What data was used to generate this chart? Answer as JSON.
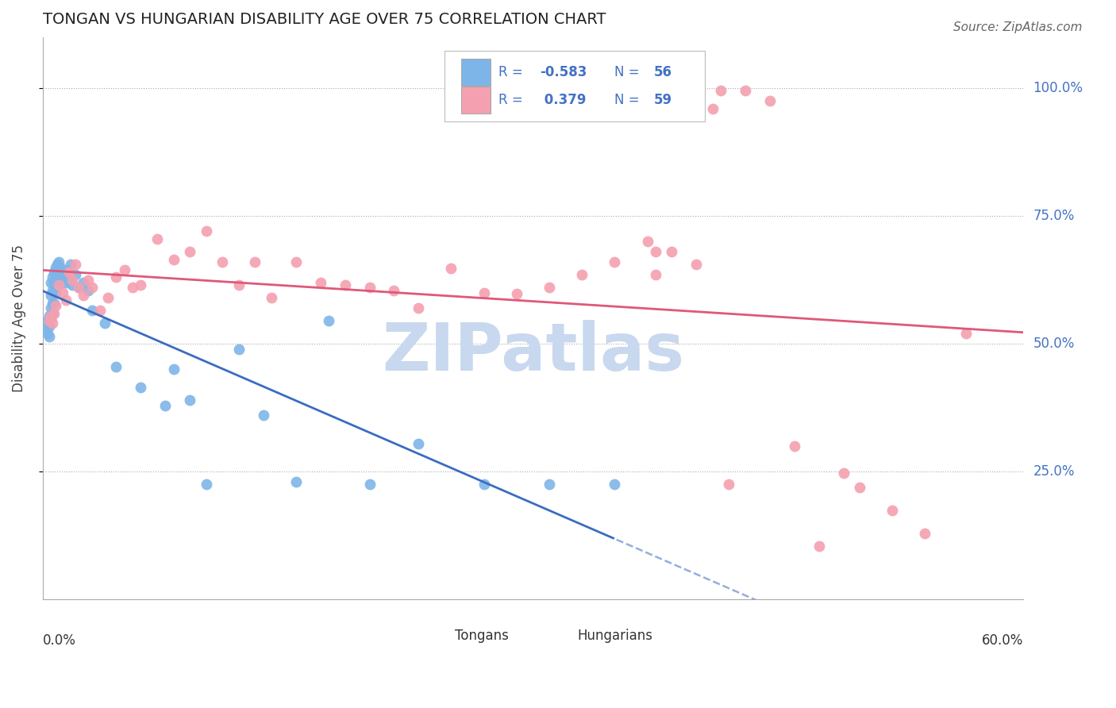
{
  "title": "TONGAN VS HUNGARIAN DISABILITY AGE OVER 75 CORRELATION CHART",
  "source": "Source: ZipAtlas.com",
  "ylabel": "Disability Age Over 75",
  "ytick_labels": [
    "25.0%",
    "50.0%",
    "75.0%",
    "100.0%"
  ],
  "ytick_values": [
    0.25,
    0.5,
    0.75,
    1.0
  ],
  "xlim": [
    0.0,
    0.6
  ],
  "ylim": [
    0.0,
    1.1
  ],
  "legend_r_tongan": "-0.583",
  "legend_n_tongan": "56",
  "legend_r_hungarian": "0.379",
  "legend_n_hungarian": "59",
  "tongan_color": "#7EB5E8",
  "hungarian_color": "#F4A0B0",
  "tongan_line_color": "#3B6CC0",
  "hungarian_line_color": "#E05878",
  "background_color": "#FFFFFF",
  "watermark_color": "#C8D8EE",
  "label_color": "#4472C4",
  "tongan_x": [
    0.002,
    0.003,
    0.003,
    0.004,
    0.004,
    0.004,
    0.005,
    0.005,
    0.005,
    0.005,
    0.006,
    0.006,
    0.006,
    0.006,
    0.007,
    0.007,
    0.007,
    0.007,
    0.008,
    0.008,
    0.008,
    0.009,
    0.009,
    0.01,
    0.01,
    0.01,
    0.011,
    0.011,
    0.012,
    0.013,
    0.014,
    0.015,
    0.016,
    0.017,
    0.018,
    0.02,
    0.022,
    0.025,
    0.028,
    0.03,
    0.038,
    0.045,
    0.06,
    0.075,
    0.08,
    0.09,
    0.1,
    0.12,
    0.135,
    0.155,
    0.175,
    0.2,
    0.23,
    0.27,
    0.31,
    0.35
  ],
  "tongan_y": [
    0.53,
    0.545,
    0.52,
    0.555,
    0.535,
    0.515,
    0.62,
    0.595,
    0.57,
    0.55,
    0.63,
    0.605,
    0.58,
    0.56,
    0.64,
    0.62,
    0.6,
    0.58,
    0.65,
    0.625,
    0.6,
    0.655,
    0.63,
    0.66,
    0.64,
    0.615,
    0.65,
    0.625,
    0.645,
    0.625,
    0.62,
    0.645,
    0.63,
    0.655,
    0.615,
    0.635,
    0.61,
    0.62,
    0.605,
    0.565,
    0.54,
    0.455,
    0.415,
    0.38,
    0.45,
    0.39,
    0.225,
    0.49,
    0.36,
    0.23,
    0.545,
    0.225,
    0.305,
    0.225,
    0.225,
    0.225
  ],
  "hungarian_x": [
    0.004,
    0.005,
    0.006,
    0.007,
    0.008,
    0.01,
    0.012,
    0.014,
    0.016,
    0.018,
    0.02,
    0.022,
    0.025,
    0.028,
    0.03,
    0.035,
    0.04,
    0.045,
    0.05,
    0.055,
    0.06,
    0.07,
    0.08,
    0.09,
    0.1,
    0.11,
    0.12,
    0.13,
    0.14,
    0.155,
    0.17,
    0.185,
    0.2,
    0.215,
    0.23,
    0.25,
    0.27,
    0.29,
    0.31,
    0.33,
    0.35,
    0.37,
    0.385,
    0.4,
    0.415,
    0.43,
    0.445,
    0.46,
    0.475,
    0.49,
    0.375,
    0.39,
    0.41,
    0.5,
    0.52,
    0.54,
    0.375,
    0.42,
    0.565
  ],
  "hungarian_y": [
    0.545,
    0.555,
    0.54,
    0.56,
    0.575,
    0.615,
    0.6,
    0.585,
    0.64,
    0.625,
    0.655,
    0.61,
    0.595,
    0.625,
    0.61,
    0.565,
    0.59,
    0.63,
    0.645,
    0.61,
    0.615,
    0.705,
    0.665,
    0.68,
    0.72,
    0.66,
    0.615,
    0.66,
    0.59,
    0.66,
    0.62,
    0.615,
    0.61,
    0.605,
    0.57,
    0.648,
    0.6,
    0.598,
    0.61,
    0.635,
    0.66,
    0.7,
    0.68,
    0.655,
    0.995,
    0.995,
    0.975,
    0.3,
    0.105,
    0.248,
    0.635,
    1.0,
    0.96,
    0.22,
    0.175,
    0.13,
    0.68,
    0.225,
    0.52
  ],
  "grid_color": "#AAAAAA",
  "spine_color": "#AAAAAA"
}
